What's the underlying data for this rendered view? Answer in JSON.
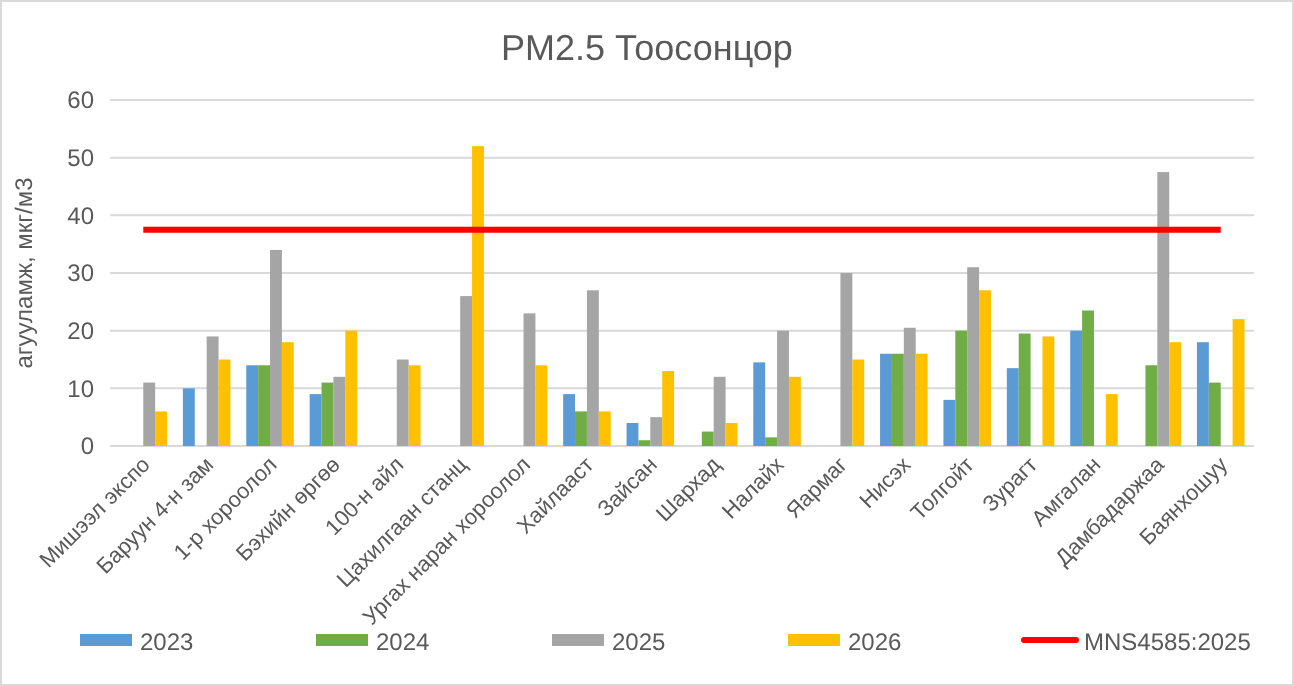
{
  "chart_data": {
    "type": "bar",
    "title": "PM2.5 Тоосонцор",
    "ylabel": "агууламж, мкг/м3",
    "categories": [
      "Мишээл экспо",
      "Баруун 4-н зам",
      "1-р хороолол",
      "Бэхийн өргөө",
      "100-н айл",
      "Цахилгаан станц",
      "Ургах наран хороолол",
      "Хайлааст",
      "Зайсан",
      "Шархад",
      "Налайх",
      "Яармаг",
      "Нисэх",
      "Толгойт",
      "Зурагт",
      "Амгалан",
      "Дамбадаржаа",
      "Баянхошуу"
    ],
    "series": [
      {
        "name": "2023",
        "color": "#5b9bd5",
        "values": [
          null,
          10,
          14,
          9,
          null,
          null,
          null,
          9,
          4,
          null,
          14.5,
          null,
          16,
          8,
          13.5,
          20,
          null,
          18
        ]
      },
      {
        "name": "2024",
        "color": "#70ad47",
        "values": [
          null,
          null,
          14,
          11,
          null,
          null,
          null,
          6,
          1,
          2.5,
          1.5,
          null,
          16,
          20,
          19.5,
          23.5,
          14,
          11
        ]
      },
      {
        "name": "2025",
        "color": "#a5a5a5",
        "values": [
          11,
          19,
          34,
          12,
          15,
          26,
          23,
          27,
          5,
          12,
          20,
          30,
          20.5,
          31,
          null,
          null,
          47.5,
          null
        ]
      },
      {
        "name": "2026",
        "color": "#ffc000",
        "values": [
          6,
          15,
          18,
          20,
          14,
          52,
          14,
          6,
          13,
          4,
          12,
          15,
          16,
          27,
          19,
          9,
          18,
          22
        ]
      },
      {
        "name": "MNS4585:2025",
        "type": "line",
        "color": "#ff0000",
        "values": [
          37.5,
          37.5,
          37.5,
          37.5,
          37.5,
          37.5,
          37.5,
          37.5,
          37.5,
          37.5,
          37.5,
          37.5,
          37.5,
          37.5,
          37.5,
          37.5,
          37.5,
          37.5
        ]
      }
    ],
    "ylim": [
      0,
      60
    ],
    "yticks": [
      0,
      10,
      20,
      30,
      40,
      50,
      60
    ],
    "grid": "y",
    "legend": "bottom"
  }
}
